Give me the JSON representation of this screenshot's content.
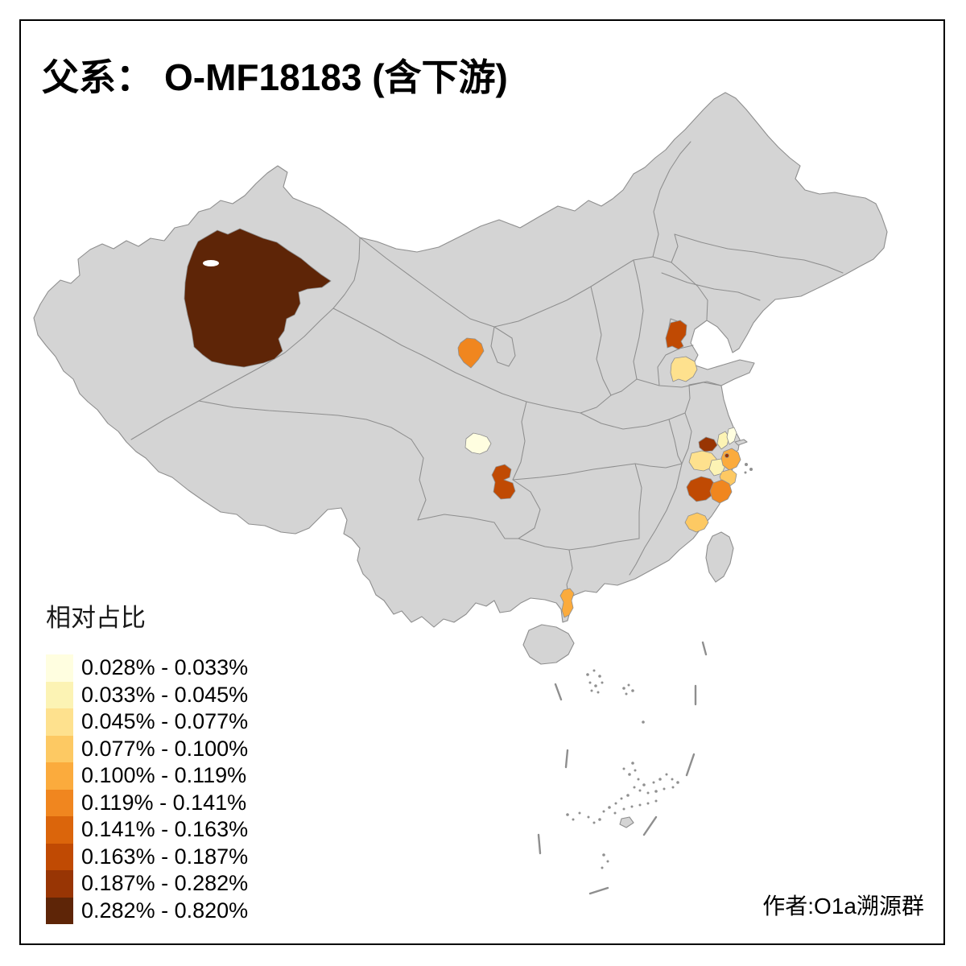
{
  "title": {
    "prefix": "父系：",
    "value": "O-MF18183 (含下游)"
  },
  "legend": {
    "title": "相对占比",
    "classes": [
      {
        "label": "0.028% - 0.033%",
        "color": "#FFFEE0"
      },
      {
        "label": "0.033% - 0.045%",
        "color": "#FCF3B4"
      },
      {
        "label": "0.045% - 0.077%",
        "color": "#FEE18E"
      },
      {
        "label": "0.077% - 0.100%",
        "color": "#FDC963"
      },
      {
        "label": "0.100% - 0.119%",
        "color": "#FBAB3D"
      },
      {
        "label": "0.119% - 0.141%",
        "color": "#F0861F"
      },
      {
        "label": "0.141% - 0.163%",
        "color": "#DB650B"
      },
      {
        "label": "0.163% - 0.187%",
        "color": "#C04A03"
      },
      {
        "label": "0.187% - 0.282%",
        "color": "#983504"
      },
      {
        "label": "0.282% - 0.820%",
        "color": "#5E2507"
      }
    ]
  },
  "attribution": "作者:O1a溯源群",
  "map": {
    "base_fill": "#D4D4D4",
    "border_color": "#8E8E8E",
    "background": "#FFFFFF",
    "regions": [
      {
        "id": "southern-xinjiang",
        "range": "0.282% - 0.820%",
        "color": "#5E2507"
      },
      {
        "id": "lanzhou-area",
        "range": "0.119% - 0.141%",
        "color": "#F0861F"
      },
      {
        "id": "jinan-area",
        "range": "0.163% - 0.187%",
        "color": "#C04A03"
      },
      {
        "id": "jining-area",
        "range": "0.045% - 0.077%",
        "color": "#FEE18E"
      },
      {
        "id": "chengdu-area",
        "range": "0.028% - 0.033%",
        "color": "#FFFEE0"
      },
      {
        "id": "chongqing-south-area",
        "range": "0.163% - 0.187%",
        "color": "#C04A03"
      },
      {
        "id": "changzhou-area",
        "range": "0.187% - 0.282%",
        "color": "#983504"
      },
      {
        "id": "nantong-west-area",
        "range": "0.033% - 0.045%",
        "color": "#FCF3B4"
      },
      {
        "id": "nantong-east-area",
        "range": "0.028% - 0.033%",
        "color": "#FFFEE0"
      },
      {
        "id": "huzhou-band-area",
        "range": "0.045% - 0.077%",
        "color": "#FEE18E"
      },
      {
        "id": "hangzhou-north-area",
        "range": "0.033% - 0.045%",
        "color": "#FCF3B4"
      },
      {
        "id": "shanghai-jiaxing-coast",
        "range": "0.100% - 0.119%",
        "color": "#FBAB3D"
      },
      {
        "id": "ningbo-coast-area",
        "range": "0.077% - 0.100%",
        "color": "#FDC963"
      },
      {
        "id": "shanghai-city-dot",
        "range": "0.187% - 0.282%",
        "color": "#983504"
      },
      {
        "id": "jinhua-quzhou-area",
        "range": "0.163% - 0.187%",
        "color": "#C04A03"
      },
      {
        "id": "taizhou-zhejiang-area",
        "range": "0.119% - 0.141%",
        "color": "#F0861F"
      },
      {
        "id": "fuzhou-area",
        "range": "0.077% - 0.100%",
        "color": "#FDC963"
      },
      {
        "id": "leizhou-area",
        "range": "0.100% - 0.119%",
        "color": "#FBAB3D"
      }
    ]
  },
  "chart_data": {
    "type": "choropleth",
    "title": "父系： O-MF18183 (含下游)",
    "legend_title": "相对占比",
    "bins": [
      "0.028% - 0.033%",
      "0.033% - 0.045%",
      "0.045% - 0.077%",
      "0.077% - 0.100%",
      "0.100% - 0.119%",
      "0.119% - 0.141%",
      "0.141% - 0.163%",
      "0.163% - 0.187%",
      "0.187% - 0.282%",
      "0.282% - 0.820%"
    ],
    "bin_colors": [
      "#FFFEE0",
      "#FCF3B4",
      "#FEE18E",
      "#FDC963",
      "#FBAB3D",
      "#F0861F",
      "#DB650B",
      "#C04A03",
      "#983504",
      "#5E2507"
    ],
    "highlighted_areas": [
      {
        "area": "southern-xinjiang",
        "bin": "0.282% - 0.820%"
      },
      {
        "area": "lanzhou-area",
        "bin": "0.119% - 0.141%"
      },
      {
        "area": "jinan-area",
        "bin": "0.163% - 0.187%"
      },
      {
        "area": "jining-area",
        "bin": "0.045% - 0.077%"
      },
      {
        "area": "chengdu-area",
        "bin": "0.028% - 0.033%"
      },
      {
        "area": "chongqing-south-area",
        "bin": "0.163% - 0.187%"
      },
      {
        "area": "changzhou-area",
        "bin": "0.187% - 0.282%"
      },
      {
        "area": "nantong-west-area",
        "bin": "0.033% - 0.045%"
      },
      {
        "area": "nantong-east-area",
        "bin": "0.028% - 0.033%"
      },
      {
        "area": "huzhou-band-area",
        "bin": "0.045% - 0.077%"
      },
      {
        "area": "hangzhou-north-area",
        "bin": "0.033% - 0.045%"
      },
      {
        "area": "shanghai-jiaxing-coast",
        "bin": "0.100% - 0.119%"
      },
      {
        "area": "ningbo-coast-area",
        "bin": "0.077% - 0.100%"
      },
      {
        "area": "shanghai-city-dot",
        "bin": "0.187% - 0.282%"
      },
      {
        "area": "jinhua-quzhou-area",
        "bin": "0.163% - 0.187%"
      },
      {
        "area": "taizhou-zhejiang-area",
        "bin": "0.119% - 0.141%"
      },
      {
        "area": "fuzhou-area",
        "bin": "0.077% - 0.100%"
      },
      {
        "area": "leizhou-area",
        "bin": "0.100% - 0.119%"
      }
    ]
  }
}
